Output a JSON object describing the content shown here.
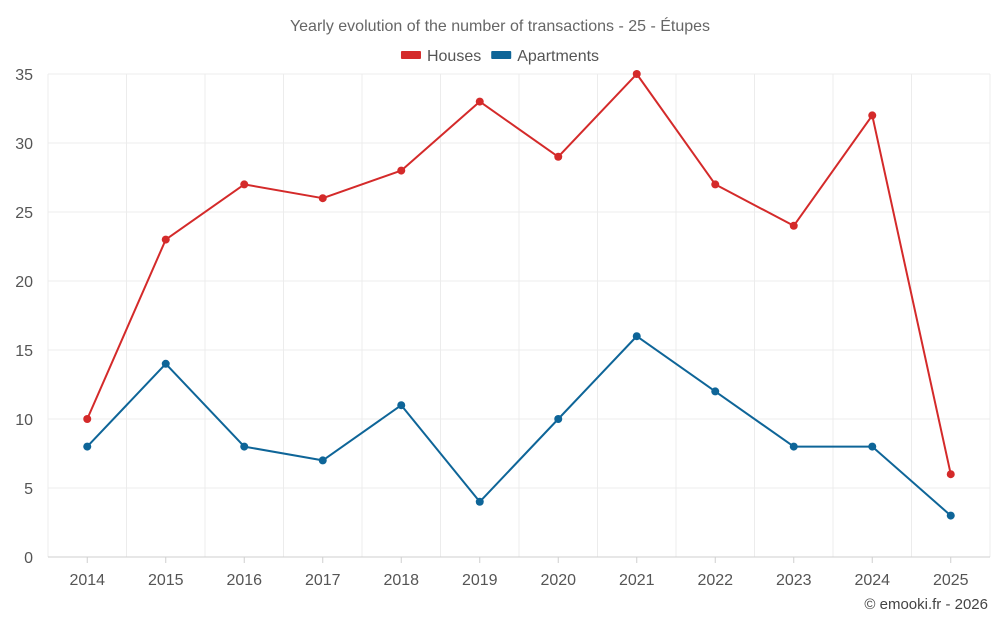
{
  "chart_data": {
    "type": "line",
    "title": "Yearly evolution of the number of transactions - 25 - Étupes",
    "categories": [
      "2014",
      "2015",
      "2016",
      "2017",
      "2018",
      "2019",
      "2020",
      "2021",
      "2022",
      "2023",
      "2024",
      "2025"
    ],
    "series": [
      {
        "name": "Houses",
        "color": "#d42a2a",
        "values": [
          10,
          23,
          27,
          26,
          28,
          33,
          29,
          35,
          27,
          24,
          32,
          6
        ]
      },
      {
        "name": "Apartments",
        "color": "#0e6598",
        "values": [
          8,
          14,
          8,
          7,
          11,
          4,
          10,
          16,
          12,
          8,
          8,
          3
        ]
      }
    ],
    "y_ticks": [
      0,
      5,
      10,
      15,
      20,
      25,
      30,
      35
    ],
    "ylim": [
      0,
      35
    ],
    "grid": true,
    "legend": "top-center",
    "xlabel": "",
    "ylabel": ""
  },
  "credit": "© emooki.fr - 2026"
}
